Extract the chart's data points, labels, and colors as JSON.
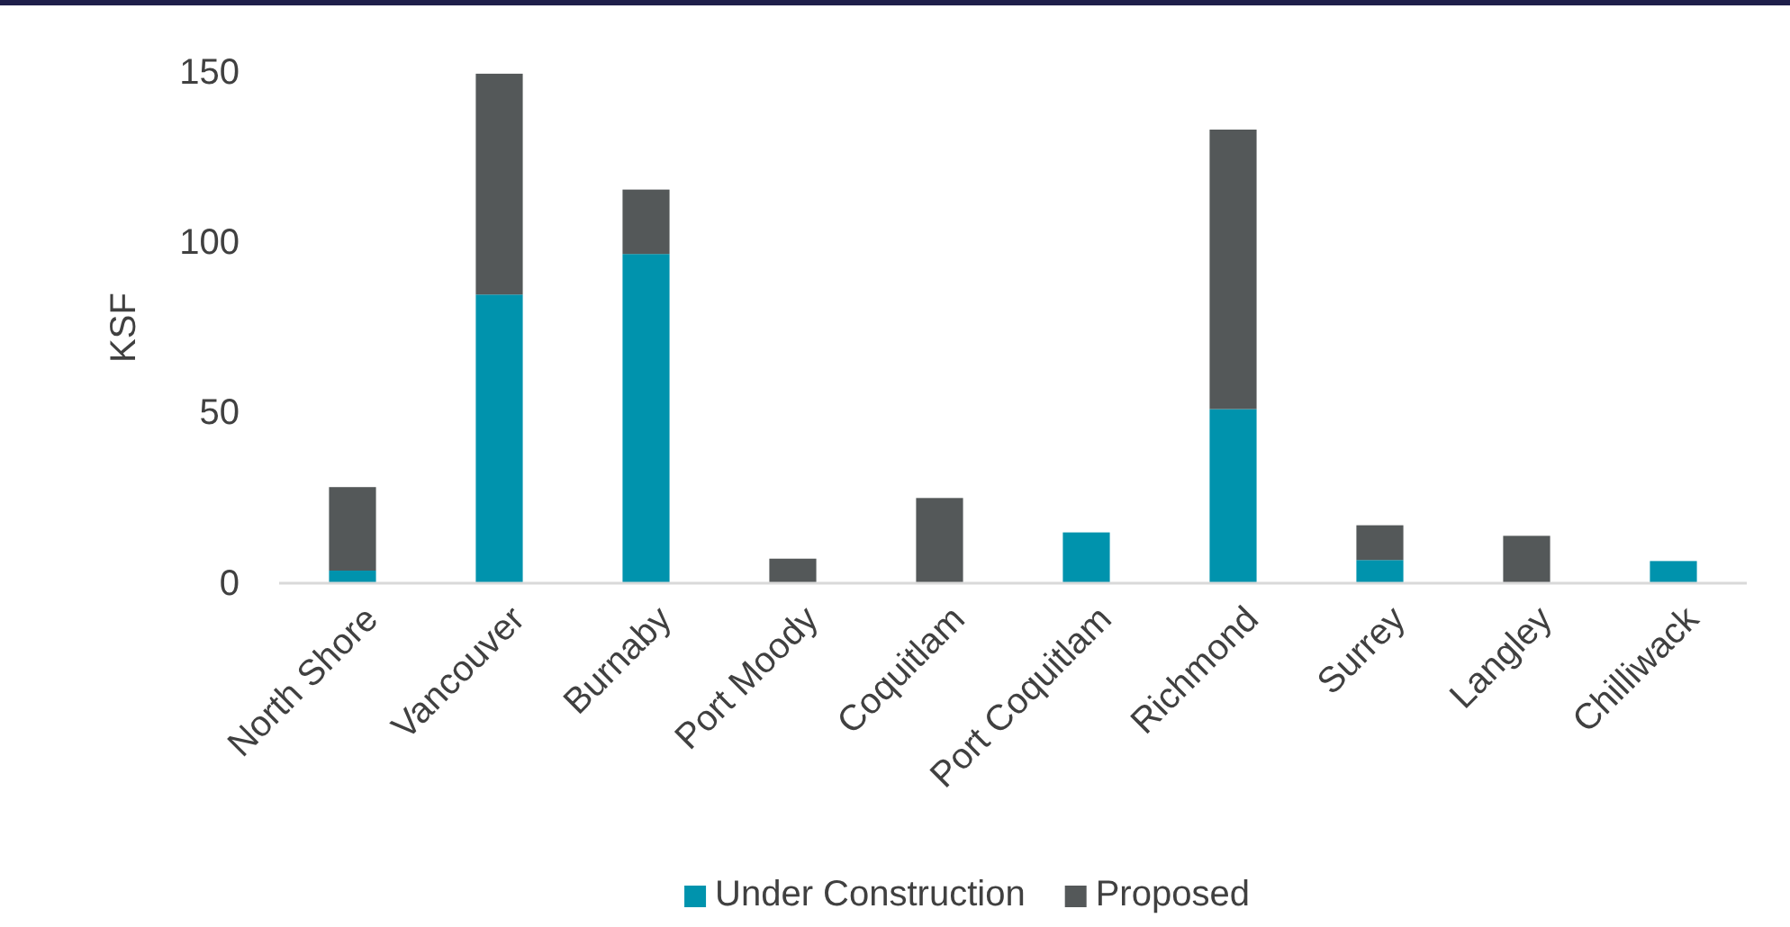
{
  "chart_data": {
    "type": "bar",
    "ylabel": "KSF",
    "stacked": true,
    "legend": "bottom",
    "grid": false,
    "categories": [
      "North Shore",
      "Vancouver",
      "Burnaby",
      "Port Moody",
      "Coquitlam",
      "Port Coquitlam",
      "Richmond",
      "Surrey",
      "Langley",
      "Chilliwack"
    ],
    "series": [
      {
        "name": "Under Construction",
        "color": "#0093ad",
        "values": [
          3.7,
          84.7,
          96.6,
          0,
          0,
          14.9,
          51.1,
          6.8,
          0,
          6.5
        ]
      },
      {
        "name": "Proposed",
        "color": "#545859",
        "values": [
          24.5,
          64.8,
          18.9,
          7.2,
          25,
          0,
          82,
          10.2,
          13.9,
          0
        ]
      }
    ],
    "ylim": [
      0,
      150
    ],
    "yticks": [
      0,
      50,
      100,
      150
    ]
  }
}
